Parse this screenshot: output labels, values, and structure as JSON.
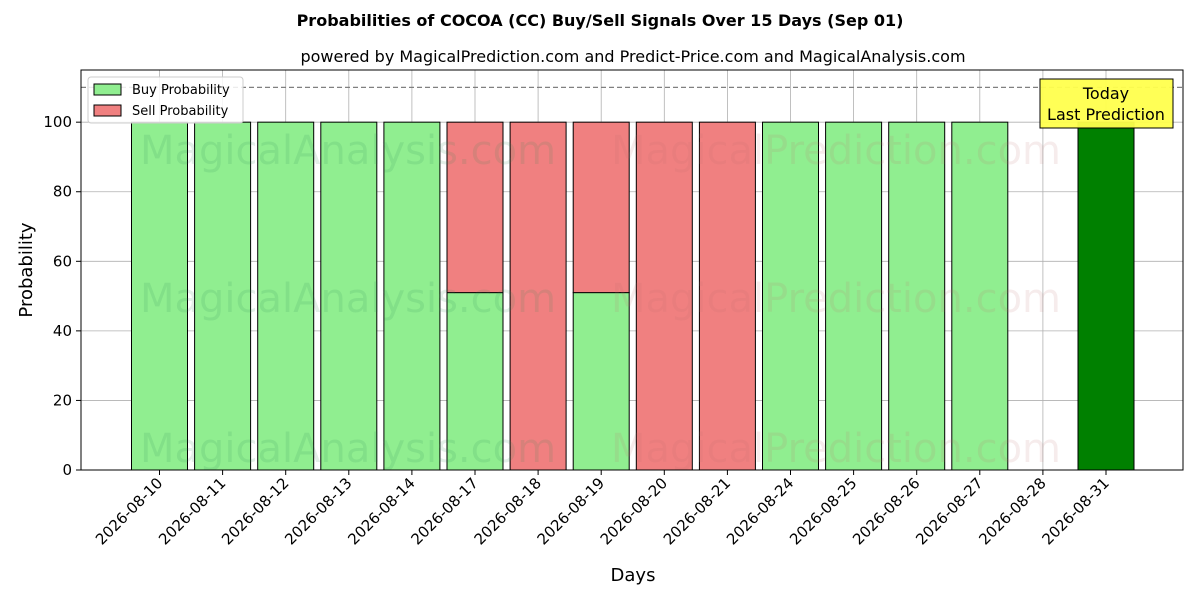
{
  "chart_data": {
    "type": "bar",
    "title": "Probabilities of COCOA (CC) Buy/Sell Signals Over 15 Days (Sep 01)",
    "subtitle": "powered by MagicalPrediction.com and Predict-Price.com and MagicalAnalysis.com",
    "xlabel": "Days",
    "ylabel": "Probability",
    "ylim": [
      0,
      115
    ],
    "yticks": [
      0,
      20,
      40,
      60,
      80,
      100
    ],
    "grid": true,
    "legend_position": "top-left",
    "categories": [
      "2026-08-10",
      "2026-08-11",
      "2026-08-12",
      "2026-08-13",
      "2026-08-14",
      "2026-08-17",
      "2026-08-18",
      "2026-08-19",
      "2026-08-20",
      "2026-08-21",
      "2026-08-24",
      "2026-08-25",
      "2026-08-26",
      "2026-08-27",
      "2026-08-28",
      "2026-08-31"
    ],
    "series": [
      {
        "name": "Buy Probability",
        "color": "#90ee90",
        "values": [
          100,
          100,
          100,
          100,
          100,
          51,
          0,
          51,
          0,
          0,
          100,
          100,
          100,
          100,
          null,
          100
        ]
      },
      {
        "name": "Sell Probability",
        "color": "#f08080",
        "values": [
          0,
          0,
          0,
          0,
          0,
          49,
          100,
          49,
          100,
          100,
          0,
          0,
          0,
          0,
          null,
          0
        ]
      }
    ],
    "highlight": {
      "category": "2026-08-31",
      "color": "#008000"
    },
    "reference_line": {
      "value": 110,
      "style": "dashed",
      "color": "#808080"
    },
    "annotation": {
      "lines": [
        "Today",
        "Last Prediction"
      ],
      "background": "#ffff4d"
    },
    "watermarks": [
      "MagicalAnalysis.com",
      "MagicalPrediction.com"
    ]
  }
}
